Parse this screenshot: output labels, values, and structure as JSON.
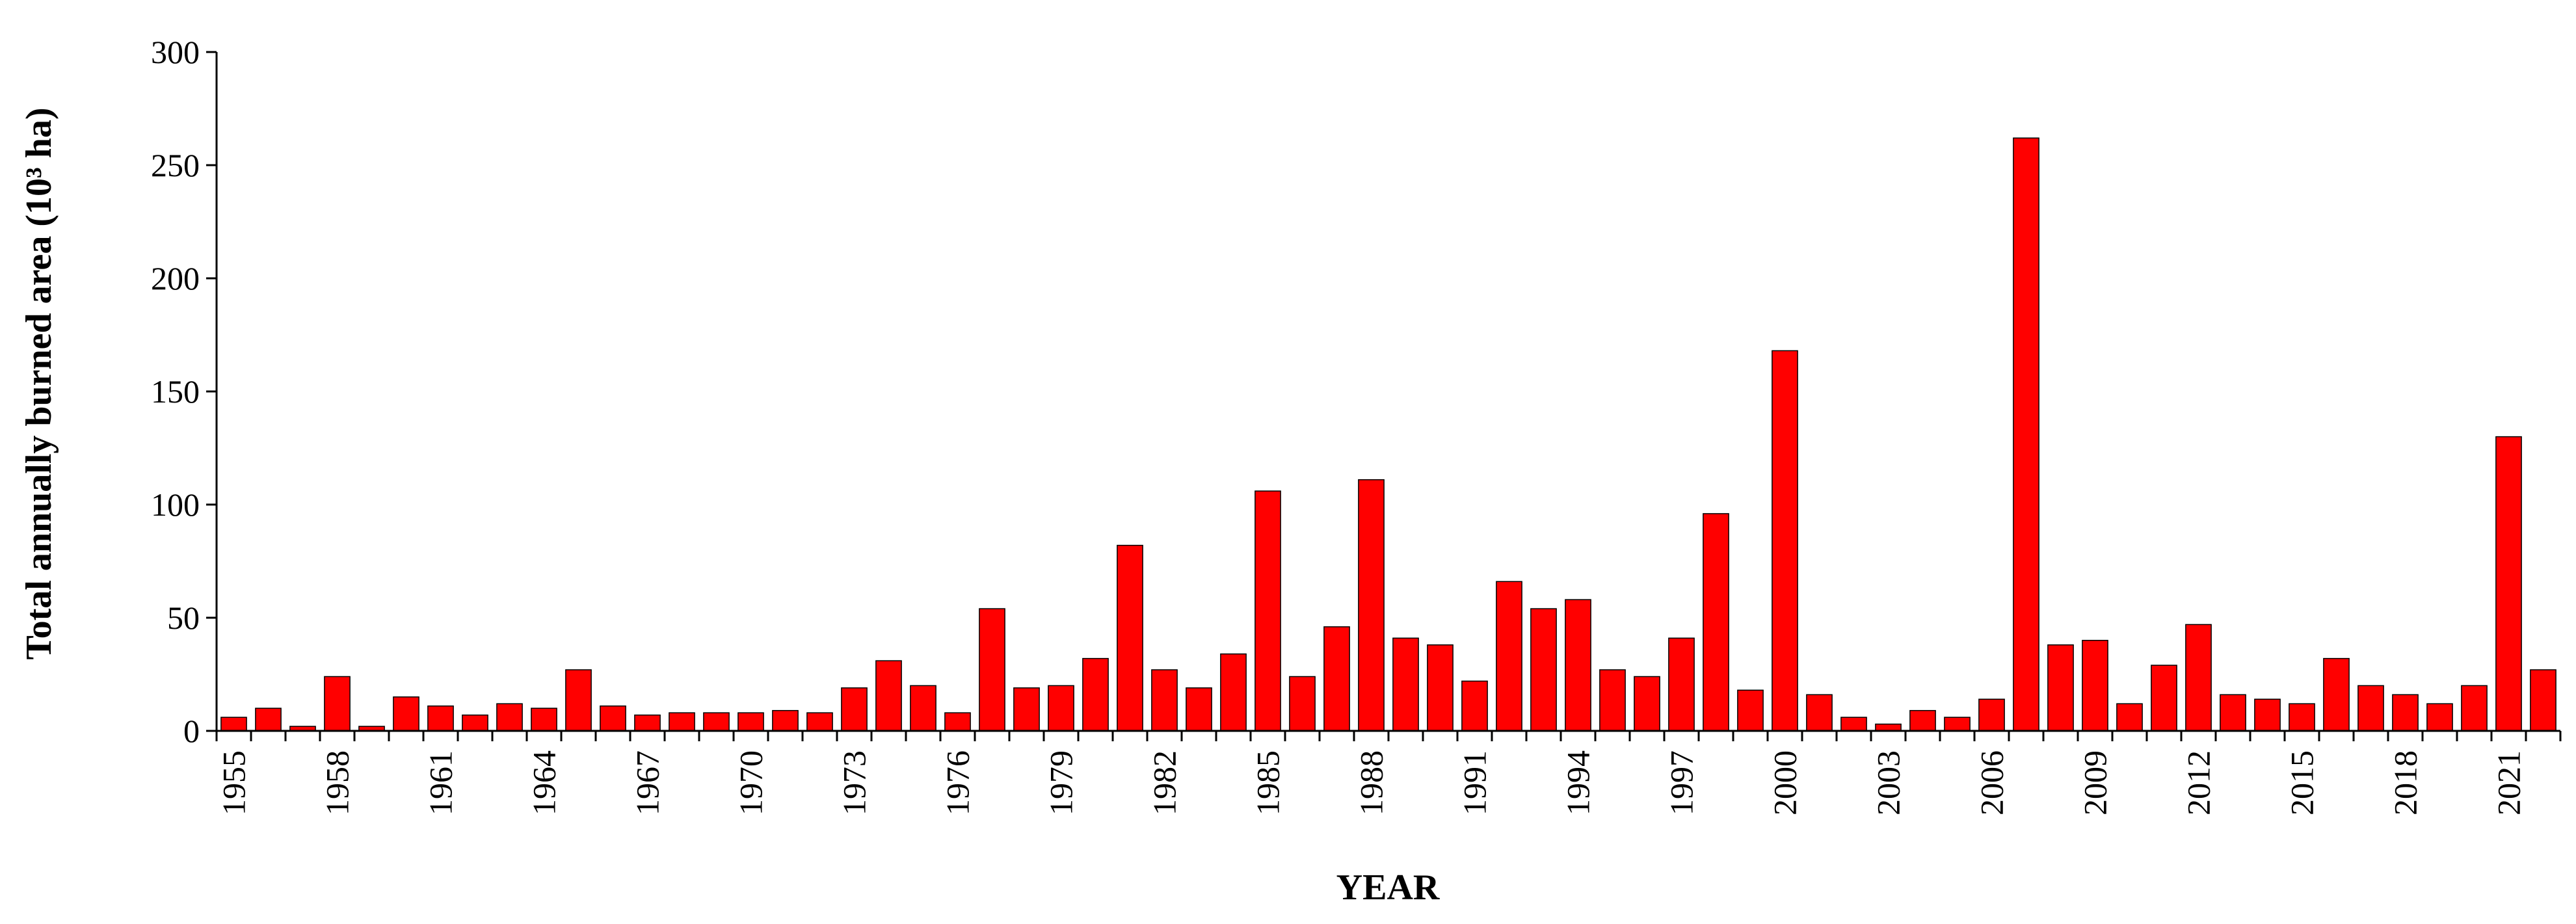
{
  "chart_data": {
    "type": "bar",
    "title": "",
    "xlabel": "YEAR",
    "ylabel": "Total annually burned area (10³ ha)",
    "ylim": [
      0,
      300
    ],
    "yticks": [
      0,
      50,
      100,
      150,
      200,
      250,
      300
    ],
    "xtick_labels": [
      "1955",
      "1958",
      "1961",
      "1964",
      "1967",
      "1970",
      "1973",
      "1976",
      "1979",
      "1982",
      "1985",
      "1988",
      "1991",
      "1994",
      "1997",
      "2000",
      "2003",
      "2006",
      "2009",
      "2012",
      "2015",
      "2018",
      "2021"
    ],
    "grid": false,
    "legend": "none",
    "bar_color": "#ff0000",
    "categories": [
      1955,
      1956,
      1957,
      1958,
      1959,
      1960,
      1961,
      1962,
      1963,
      1964,
      1965,
      1966,
      1967,
      1968,
      1969,
      1970,
      1971,
      1972,
      1973,
      1974,
      1975,
      1976,
      1977,
      1978,
      1979,
      1980,
      1981,
      1982,
      1983,
      1984,
      1985,
      1986,
      1987,
      1988,
      1989,
      1990,
      1991,
      1992,
      1993,
      1994,
      1995,
      1996,
      1997,
      1998,
      1999,
      2000,
      2001,
      2002,
      2003,
      2004,
      2005,
      2006,
      2007,
      2008,
      2009,
      2010,
      2011,
      2012,
      2013,
      2014,
      2015,
      2016,
      2017,
      2018,
      2019,
      2020,
      2021,
      2022
    ],
    "values": [
      6,
      10,
      2,
      24,
      2,
      15,
      11,
      7,
      12,
      10,
      27,
      11,
      7,
      8,
      8,
      8,
      9,
      8,
      19,
      31,
      20,
      8,
      54,
      19,
      20,
      32,
      82,
      27,
      19,
      34,
      106,
      24,
      46,
      111,
      41,
      38,
      22,
      66,
      54,
      58,
      27,
      24,
      41,
      96,
      18,
      168,
      16,
      6,
      3,
      9,
      6,
      14,
      262,
      38,
      40,
      12,
      29,
      47,
      16,
      14,
      12,
      32,
      20,
      16,
      12,
      20,
      130,
      27
    ]
  }
}
